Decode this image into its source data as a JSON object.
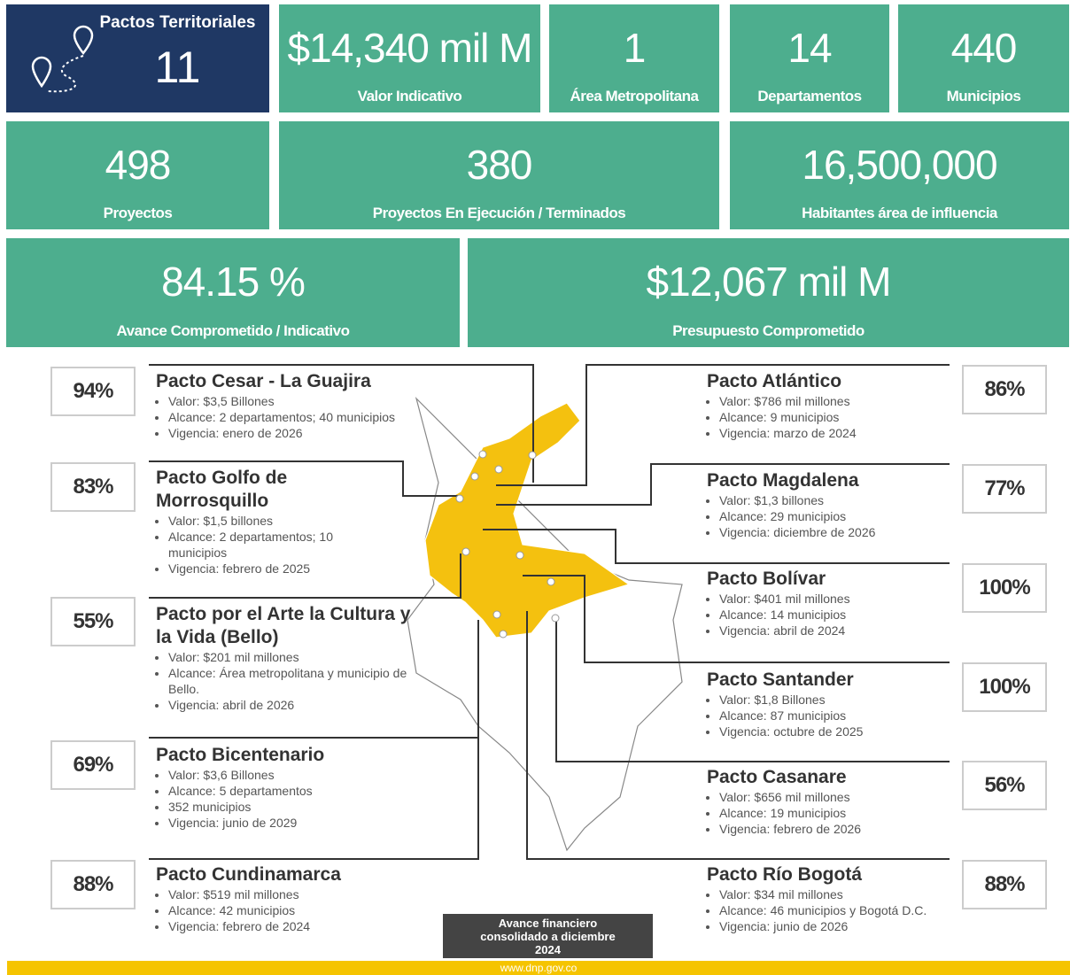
{
  "header": {
    "title": "Pactos Territoriales",
    "value": "11"
  },
  "kpis": [
    {
      "value": "$14,340 mil M",
      "label": "Valor Indicativo"
    },
    {
      "value": "1",
      "label": "Área Metropolitana"
    },
    {
      "value": "14",
      "label": "Departamentos"
    },
    {
      "value": "440",
      "label": "Municipios"
    },
    {
      "value": "498",
      "label": "Proyectos"
    },
    {
      "value": "380",
      "label": "Proyectos En Ejecución / Terminados"
    },
    {
      "value": "16,500,000",
      "label": "Habitantes área de influencia"
    },
    {
      "value": "84.15 %",
      "label": "Avance Comprometido / Indicativo"
    },
    {
      "value": "$12,067 mil M",
      "label": "Presupuesto Comprometido"
    }
  ],
  "pacts": {
    "left": [
      {
        "name": "Pacto Cesar - La Guajira",
        "percent": "94%",
        "bullets": [
          "Valor: $3,5 Billones",
          "Alcance: 2 departamentos; 40 municipios",
          "Vigencia: enero de 2026"
        ]
      },
      {
        "name": "Pacto Golfo de Morrosquillo",
        "percent": "83%",
        "bullets": [
          "Valor: $1,5 billones",
          "Alcance: 2 departamentos; 10 municipios",
          "Vigencia: febrero de 2025"
        ]
      },
      {
        "name": "Pacto por el Arte la Cultura y la Vida (Bello)",
        "percent": "55%",
        "bullets": [
          "Valor: $201 mil millones",
          "Alcance: Área metropolitana y municipio de Bello.",
          "Vigencia: abril de 2026"
        ]
      },
      {
        "name": "Pacto Bicentenario",
        "percent": "69%",
        "bullets": [
          "Valor: $3,6 Billones",
          "Alcance: 5 departamentos",
          "352 municipios",
          "Vigencia: junio de 2029"
        ]
      },
      {
        "name": "Pacto Cundinamarca",
        "percent": "88%",
        "bullets": [
          "Valor: $519 mil millones",
          "Alcance: 42 municipios",
          "Vigencia: febrero de 2024"
        ]
      }
    ],
    "right": [
      {
        "name": "Pacto Atlántico",
        "percent": "86%",
        "bullets": [
          "Valor: $786 mil millones",
          "Alcance: 9 municipios",
          "Vigencia: marzo de 2024"
        ]
      },
      {
        "name": "Pacto Magdalena",
        "percent": "77%",
        "bullets": [
          "Valor: $1,3 billones",
          "Alcance: 29 municipios",
          "Vigencia: diciembre de 2026"
        ]
      },
      {
        "name": "Pacto Bolívar",
        "percent": "100%",
        "bullets": [
          "Valor: $401 mil millones",
          "Alcance: 14 municipios",
          "Vigencia: abril de 2024"
        ]
      },
      {
        "name": "Pacto Santander",
        "percent": "100%",
        "bullets": [
          "Valor: $1,8 Billones",
          "Alcance: 87 municipios",
          "Vigencia: octubre de 2025"
        ]
      },
      {
        "name": "Pacto Casanare",
        "percent": "56%",
        "bullets": [
          "Valor: $656 mil millones",
          "Alcance: 19 municipios",
          "Vigencia: febrero de 2026"
        ]
      },
      {
        "name": "Pacto Río Bogotá",
        "percent": "88%",
        "bullets": [
          "Valor: $34 mil millones",
          "Alcance: 46 municipios y Bogotá D.C.",
          "Vigencia: junio de 2026"
        ]
      }
    ]
  },
  "footer": {
    "note": "Avance financiero consolidado a diciembre 2024",
    "url": "www.dnp.gov.co"
  }
}
